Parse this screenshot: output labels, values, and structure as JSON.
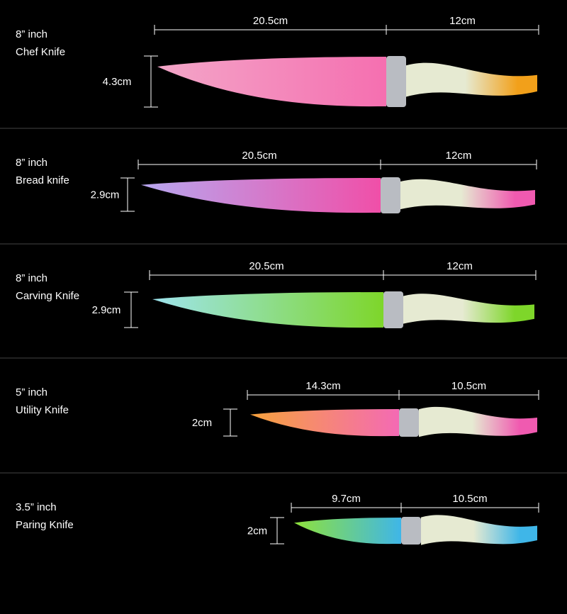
{
  "knives": [
    {
      "size": "8” inch",
      "name": "Chef Knife",
      "blade_length": "20.5cm",
      "handle_length": "12cm",
      "blade_width": "4.3cm",
      "blade_colors": [
        "#f3a6c8",
        "#f56fb0"
      ],
      "handle_color": "#f2a01a"
    },
    {
      "size": "8” inch",
      "name": "Bread knife",
      "blade_length": "20.5cm",
      "handle_length": "12cm",
      "blade_width": "2.9cm",
      "blade_colors": [
        "#b7a7f0",
        "#f04fa8"
      ],
      "handle_color": "#f05ab0"
    },
    {
      "size": "8” inch",
      "name": "Carving Knife",
      "blade_length": "20.5cm",
      "handle_length": "12cm",
      "blade_width": "2.9cm",
      "blade_colors": [
        "#9ee4ee",
        "#7ed62a"
      ],
      "handle_color": "#7ed62a"
    },
    {
      "size": "5” inch",
      "name": "Utility Knife",
      "blade_length": "14.3cm",
      "handle_length": "10.5cm",
      "blade_width": "2cm",
      "blade_colors": [
        "#f7a23c",
        "#f46ab4"
      ],
      "handle_color": "#f05ab0"
    },
    {
      "size": "3.5” inch",
      "name": "Paring Knife",
      "blade_length": "9.7cm",
      "handle_length": "10.5cm",
      "blade_width": "2cm",
      "blade_colors": [
        "#8fe23a",
        "#3fb6e8"
      ],
      "handle_color": "#3fb6e8"
    }
  ]
}
